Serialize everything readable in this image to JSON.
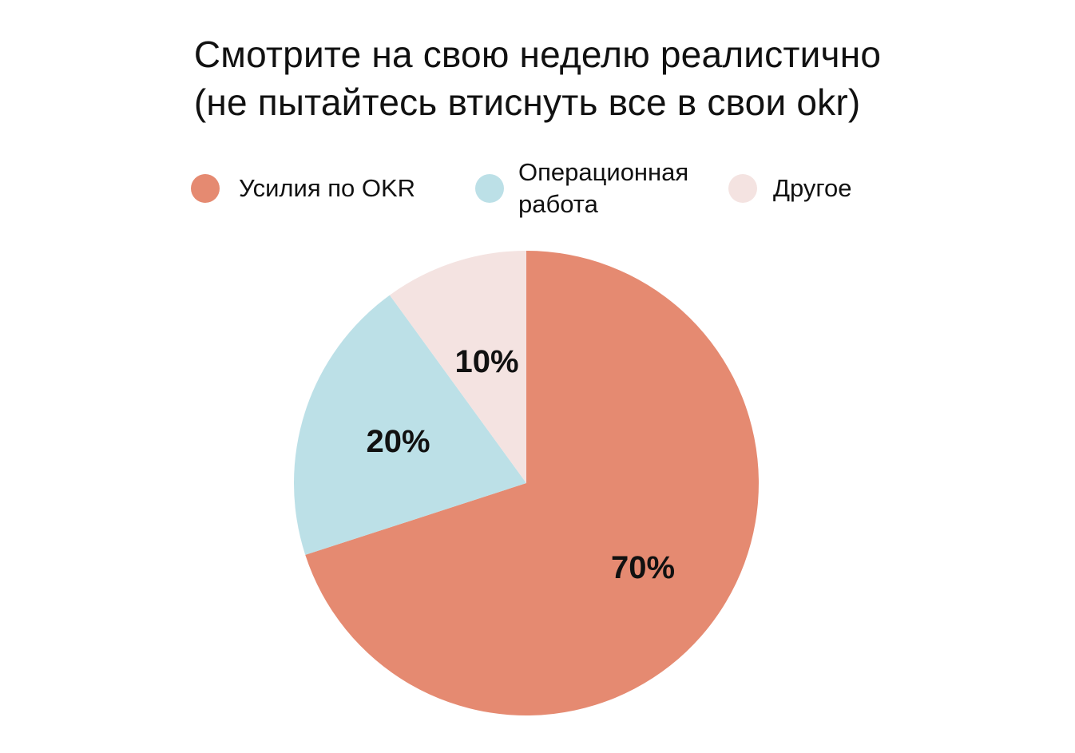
{
  "chart_data": {
    "type": "pie",
    "title": [
      "Смотрите на свою неделю реалистично",
      "(не пытайтесь втиснуть все в свои okr)"
    ],
    "legend_position": "top",
    "start_angle_deg": 0,
    "direction": "clockwise",
    "slices": [
      {
        "label": "Усилия по OKR",
        "value": 70,
        "value_label": "70%",
        "color": "#E58A71"
      },
      {
        "label": "Операционная\nработа",
        "value": 20,
        "value_label": "20%",
        "color": "#BCE0E7"
      },
      {
        "label": "Другое",
        "value": 10,
        "value_label": "10%",
        "color": "#F4E3E1"
      }
    ]
  }
}
